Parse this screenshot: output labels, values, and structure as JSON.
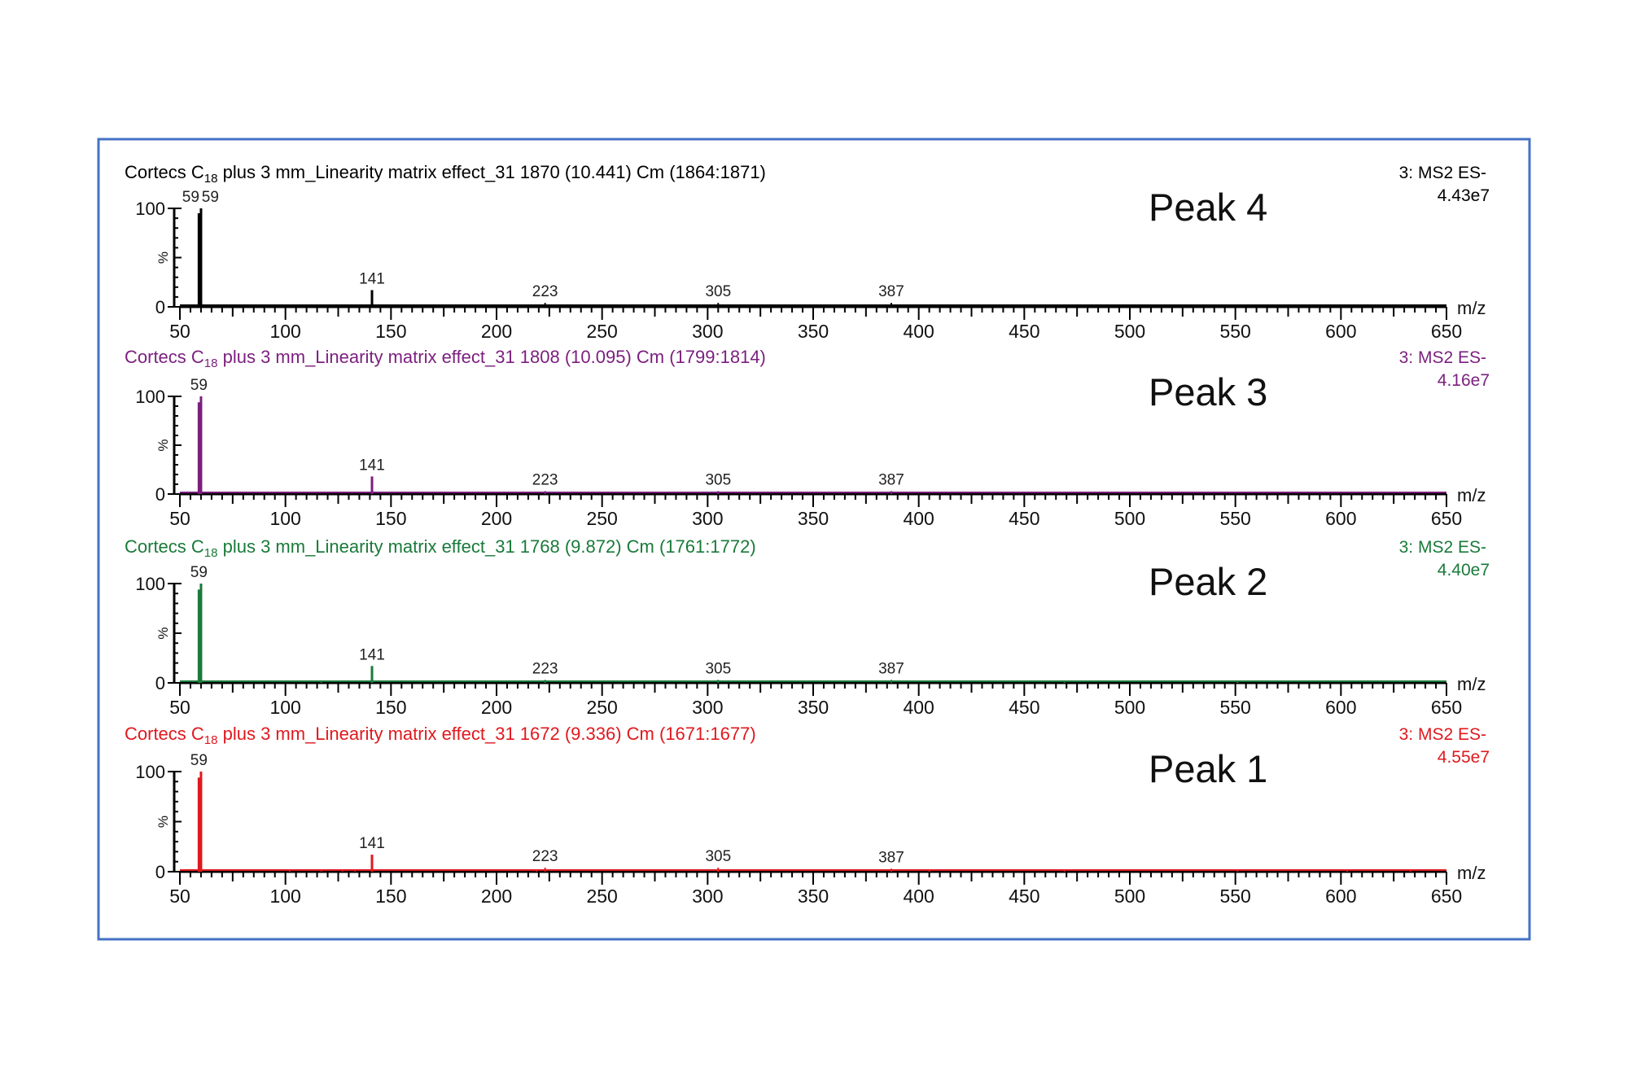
{
  "figure": {
    "border_color": "#4472C4",
    "x_axis_label": "m/z",
    "y_axis_label": "%",
    "y_ticks": [
      "0",
      "100"
    ]
  },
  "chart_data": [
    {
      "type": "bar",
      "subtype": "mass-spectrum",
      "panel_label": "Peak 4",
      "title_prefix": "Cortecs C",
      "title_subscript": "18",
      "title_suffix": " plus 3 mm_Linearity matrix effect_31 1870 (10.441) Cm (1864:1871)",
      "scan_function": "3: MS2 ES-",
      "intensity": "4.43e7",
      "color": "#000000",
      "xlabel": "m/z",
      "ylabel": "%",
      "xlim": [
        50,
        650
      ],
      "ylim": [
        0,
        100
      ],
      "x_ticks": [
        50,
        100,
        150,
        200,
        250,
        300,
        350,
        400,
        450,
        500,
        550,
        600,
        650
      ],
      "y_ticks": [
        0,
        100
      ],
      "peak_labels": [
        {
          "mz": 59,
          "text": "59",
          "dx": -10
        },
        {
          "mz": 59,
          "text": "59",
          "dx": 14
        },
        {
          "mz": 141,
          "text": "141",
          "dx": 0
        },
        {
          "mz": 223,
          "text": "223",
          "dx": 0
        },
        {
          "mz": 305,
          "text": "305",
          "dx": 0
        },
        {
          "mz": 387,
          "text": "387",
          "dx": 0
        }
      ],
      "peaks": [
        {
          "mz": 59,
          "rel": 95
        },
        {
          "mz": 60,
          "rel": 100
        },
        {
          "mz": 97,
          "rel": 1.5
        },
        {
          "mz": 117,
          "rel": 1.5
        },
        {
          "mz": 127,
          "rel": 1.5
        },
        {
          "mz": 141,
          "rel": 17
        },
        {
          "mz": 213,
          "rel": 1.5
        },
        {
          "mz": 223,
          "rel": 4
        },
        {
          "mz": 233,
          "rel": 1.5
        },
        {
          "mz": 237,
          "rel": 1.5
        },
        {
          "mz": 285,
          "rel": 1.5
        },
        {
          "mz": 293,
          "rel": 1.5
        },
        {
          "mz": 305,
          "rel": 4
        },
        {
          "mz": 371,
          "rel": 1.5
        },
        {
          "mz": 378,
          "rel": 1.5
        },
        {
          "mz": 387,
          "rel": 4
        },
        {
          "mz": 391,
          "rel": 2
        },
        {
          "mz": 405,
          "rel": 1.5
        },
        {
          "mz": 469,
          "rel": 2
        },
        {
          "mz": 551,
          "rel": 1.5
        },
        {
          "mz": 633,
          "rel": 1.5
        }
      ]
    },
    {
      "type": "bar",
      "subtype": "mass-spectrum",
      "panel_label": "Peak 3",
      "title_prefix": "Cortecs C",
      "title_subscript": "18",
      "title_suffix": " plus 3 mm_Linearity matrix effect_31 1808 (10.095) Cm (1799:1814)",
      "scan_function": "3: MS2 ES-",
      "intensity": "4.16e7",
      "color": "#7B1F7E",
      "xlabel": "m/z",
      "ylabel": "%",
      "xlim": [
        50,
        650
      ],
      "ylim": [
        0,
        100
      ],
      "x_ticks": [
        50,
        100,
        150,
        200,
        250,
        300,
        350,
        400,
        450,
        500,
        550,
        600,
        650
      ],
      "y_ticks": [
        0,
        100
      ],
      "peak_labels": [
        {
          "mz": 59,
          "text": "59",
          "dx": 0
        },
        {
          "mz": 141,
          "text": "141",
          "dx": 0
        },
        {
          "mz": 223,
          "text": "223",
          "dx": 0
        },
        {
          "mz": 305,
          "text": "305",
          "dx": 0
        },
        {
          "mz": 387,
          "text": "387",
          "dx": 0
        }
      ],
      "peaks": [
        {
          "mz": 59,
          "rel": 94
        },
        {
          "mz": 60,
          "rel": 100
        },
        {
          "mz": 141,
          "rel": 18
        },
        {
          "mz": 223,
          "rel": 3
        },
        {
          "mz": 305,
          "rel": 3
        },
        {
          "mz": 387,
          "rel": 3
        }
      ]
    },
    {
      "type": "bar",
      "subtype": "mass-spectrum",
      "panel_label": "Peak 2",
      "title_prefix": "Cortecs C",
      "title_subscript": "18",
      "title_suffix": " plus 3 mm_Linearity matrix effect_31 1768 (9.872) Cm (1761:1772)",
      "scan_function": "3: MS2 ES-",
      "intensity": "4.40e7",
      "color": "#1A7A3A",
      "xlabel": "m/z",
      "ylabel": "%",
      "xlim": [
        50,
        650
      ],
      "ylim": [
        0,
        100
      ],
      "x_ticks": [
        50,
        100,
        150,
        200,
        250,
        300,
        350,
        400,
        450,
        500,
        550,
        600,
        650
      ],
      "y_ticks": [
        0,
        100
      ],
      "peak_labels": [
        {
          "mz": 59,
          "text": "59",
          "dx": 0
        },
        {
          "mz": 141,
          "text": "141",
          "dx": 0
        },
        {
          "mz": 223,
          "text": "223",
          "dx": 0
        },
        {
          "mz": 305,
          "text": "305",
          "dx": 0
        },
        {
          "mz": 387,
          "text": "387",
          "dx": 0
        }
      ],
      "peaks": [
        {
          "mz": 59,
          "rel": 94
        },
        {
          "mz": 60,
          "rel": 100
        },
        {
          "mz": 117,
          "rel": 1.5
        },
        {
          "mz": 141,
          "rel": 17
        },
        {
          "mz": 223,
          "rel": 3
        },
        {
          "mz": 305,
          "rel": 3
        },
        {
          "mz": 387,
          "rel": 3
        },
        {
          "mz": 469,
          "rel": 2
        },
        {
          "mz": 551,
          "rel": 1.5
        }
      ]
    },
    {
      "type": "bar",
      "subtype": "mass-spectrum",
      "panel_label": "Peak 1",
      "title_prefix": "Cortecs C",
      "title_subscript": "18",
      "title_suffix": " plus 3 mm_Linearity matrix effect_31 1672 (9.336) Cm (1671:1677)",
      "scan_function": "3: MS2 ES-",
      "intensity": "4.55e7",
      "color": "#E0191E",
      "xlabel": "m/z",
      "ylabel": "%",
      "xlim": [
        50,
        650
      ],
      "ylim": [
        0,
        100
      ],
      "x_ticks": [
        50,
        100,
        150,
        200,
        250,
        300,
        350,
        400,
        450,
        500,
        550,
        600,
        650
      ],
      "y_ticks": [
        0,
        100
      ],
      "peak_labels": [
        {
          "mz": 59,
          "text": "59",
          "dx": 0
        },
        {
          "mz": 141,
          "text": "141",
          "dx": 0
        },
        {
          "mz": 223,
          "text": "223",
          "dx": 0
        },
        {
          "mz": 305,
          "text": "305",
          "dx": 0
        },
        {
          "mz": 387,
          "text": "387",
          "dx": 0
        }
      ],
      "peaks": [
        {
          "mz": 59,
          "rel": 94
        },
        {
          "mz": 60,
          "rel": 100
        },
        {
          "mz": 102,
          "rel": 1.5
        },
        {
          "mz": 117,
          "rel": 2
        },
        {
          "mz": 127,
          "rel": 1.5
        },
        {
          "mz": 133,
          "rel": 1.5
        },
        {
          "mz": 141,
          "rel": 17
        },
        {
          "mz": 219,
          "rel": 2
        },
        {
          "mz": 223,
          "rel": 4
        },
        {
          "mz": 305,
          "rel": 4
        },
        {
          "mz": 387,
          "rel": 3
        },
        {
          "mz": 405,
          "rel": 1.5
        },
        {
          "mz": 469,
          "rel": 2
        },
        {
          "mz": 551,
          "rel": 2
        },
        {
          "mz": 603,
          "rel": 1.5
        },
        {
          "mz": 633,
          "rel": 2
        }
      ]
    }
  ]
}
